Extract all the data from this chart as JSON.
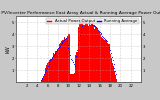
{
  "title": "Solar PV/Inverter Performance East Array Actual & Running Average Power Output",
  "title_fontsize": 3.2,
  "background_color": "#c8c8c8",
  "plot_bg_color": "#ffffff",
  "bar_color": "#ff0000",
  "dot_color": "#0000ff",
  "ylabel": "kW",
  "ylabel_fontsize": 3.5,
  "tick_fontsize": 2.8,
  "ylim": [
    0,
    5.5
  ],
  "yticks": [
    1,
    2,
    3,
    4,
    5
  ],
  "num_bars": 144,
  "grid_color": "#aaaaaa",
  "legend_entries": [
    "---- Actual Power Output",
    "---- Running Average"
  ],
  "legend_colors": [
    "#ff0000",
    "#0000ff"
  ],
  "legend_fontsize": 2.8,
  "xtick_positions": [
    12,
    24,
    36,
    48,
    60,
    72,
    84,
    96,
    108,
    120,
    132
  ],
  "xtick_labels": [
    "2",
    "4",
    "6",
    "8",
    "10",
    "12",
    "14",
    "16",
    "18",
    "20",
    "22"
  ]
}
